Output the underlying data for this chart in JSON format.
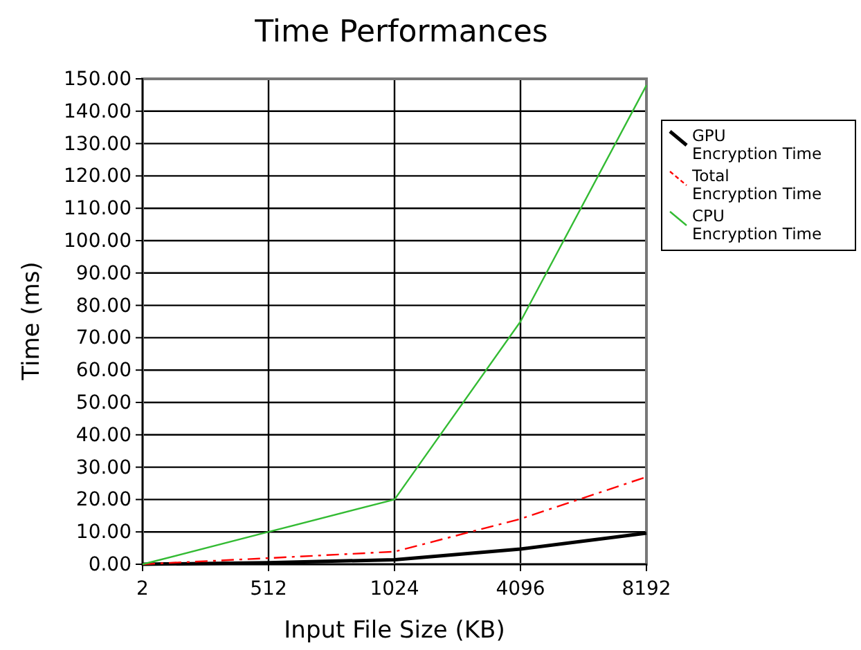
{
  "chart_data": {
    "type": "line",
    "title": "Time Performances",
    "xlabel": "Input File Size (KB)",
    "ylabel": "Time (ms)",
    "categories": [
      "2",
      "512",
      "1024",
      "4096",
      "8192"
    ],
    "series": [
      {
        "name": "GPU Encryption Time",
        "color": "#000000",
        "values": [
          0,
          0.5,
          1.4,
          4.7,
          9.6
        ],
        "line_style": "solid"
      },
      {
        "name": "Total Encryption Time",
        "color": "#ff0000",
        "values": [
          0,
          1.9,
          3.9,
          14,
          27
        ],
        "line_style": "dashed"
      },
      {
        "name": "CPU Encryption Time",
        "color": "#33bb33",
        "values": [
          0,
          10,
          20,
          75,
          148
        ],
        "line_style": "solid"
      }
    ],
    "ylim": [
      0,
      150
    ],
    "yticks": [
      {
        "value": 0,
        "label": "0.00"
      },
      {
        "value": 10,
        "label": "10.00"
      },
      {
        "value": 20,
        "label": "20.00"
      },
      {
        "value": 30,
        "label": "30.00"
      },
      {
        "value": 40,
        "label": "40.00"
      },
      {
        "value": 50,
        "label": "50.00"
      },
      {
        "value": 60,
        "label": "60.00"
      },
      {
        "value": 70,
        "label": "70.00"
      },
      {
        "value": 80,
        "label": "80.00"
      },
      {
        "value": 90,
        "label": "90.00"
      },
      {
        "value": 100,
        "label": "100.00"
      },
      {
        "value": 110,
        "label": "110.00"
      },
      {
        "value": 120,
        "label": "120.00"
      },
      {
        "value": 130,
        "label": "130.00"
      },
      {
        "value": 140,
        "label": "140.00"
      },
      {
        "value": 150,
        "label": "150.00"
      }
    ],
    "grid": true,
    "legend": "right",
    "marker": "none"
  }
}
